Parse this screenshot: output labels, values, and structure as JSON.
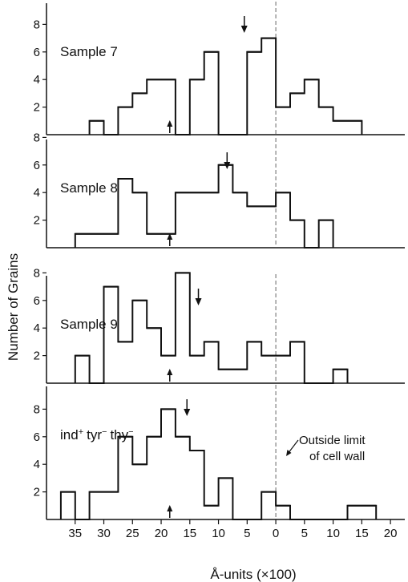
{
  "chart_data": [
    {
      "type": "histogram",
      "panel_label": "Sample 7",
      "label_sub": "",
      "bin_width": 2.5,
      "bins": [
        {
          "x": -30,
          "y": 1
        },
        {
          "x": -27.5,
          "y": 0
        },
        {
          "x": -25,
          "y": 2
        },
        {
          "x": -22.5,
          "y": 3
        },
        {
          "x": -20,
          "y": 4
        },
        {
          "x": -17.5,
          "y": 4
        },
        {
          "x": -15,
          "y": 0
        },
        {
          "x": -12.5,
          "y": 4
        },
        {
          "x": -10,
          "y": 6
        },
        {
          "x": -7.5,
          "y": 0
        },
        {
          "x": -5,
          "y": 0
        },
        {
          "x": -2.5,
          "y": 6
        },
        {
          "x": 0,
          "y": 7
        },
        {
          "x": 2.5,
          "y": 2
        },
        {
          "x": 5,
          "y": 3
        },
        {
          "x": 7.5,
          "y": 4
        },
        {
          "x": 10,
          "y": 2
        },
        {
          "x": 12.5,
          "y": 1
        },
        {
          "x": 15,
          "y": 1
        }
      ],
      "down_arrow_x": -5.5,
      "up_arrow_x": -18.5,
      "yticks": [
        2,
        4,
        6,
        8
      ],
      "ylim": [
        0,
        9
      ]
    },
    {
      "type": "histogram",
      "panel_label": "Sample 8",
      "label_sub": "",
      "bin_width": 2.5,
      "bins": [
        {
          "x": -32.5,
          "y": 1
        },
        {
          "x": -30,
          "y": 1
        },
        {
          "x": -27.5,
          "y": 1
        },
        {
          "x": -25,
          "y": 5
        },
        {
          "x": -22.5,
          "y": 4
        },
        {
          "x": -20,
          "y": 1
        },
        {
          "x": -17.5,
          "y": 1
        },
        {
          "x": -15,
          "y": 4
        },
        {
          "x": -12.5,
          "y": 4
        },
        {
          "x": -10,
          "y": 4
        },
        {
          "x": -7.5,
          "y": 6
        },
        {
          "x": -5,
          "y": 4
        },
        {
          "x": -2.5,
          "y": 3
        },
        {
          "x": 0,
          "y": 3
        },
        {
          "x": 2.5,
          "y": 4
        },
        {
          "x": 5,
          "y": 2
        },
        {
          "x": 7.5,
          "y": 0
        },
        {
          "x": 10,
          "y": 2
        }
      ],
      "down_arrow_x": -8.5,
      "up_arrow_x": -18.5,
      "yticks": [
        2,
        4,
        6,
        8
      ],
      "ylim": [
        0,
        9
      ]
    },
    {
      "type": "histogram",
      "panel_label": "Sample 9",
      "label_sub": "",
      "bin_width": 2.5,
      "bins": [
        {
          "x": -32.5,
          "y": 2
        },
        {
          "x": -30,
          "y": 0
        },
        {
          "x": -27.5,
          "y": 7
        },
        {
          "x": -25,
          "y": 3
        },
        {
          "x": -22.5,
          "y": 6
        },
        {
          "x": -20,
          "y": 4
        },
        {
          "x": -17.5,
          "y": 2
        },
        {
          "x": -15,
          "y": 8
        },
        {
          "x": -12.5,
          "y": 2
        },
        {
          "x": -10,
          "y": 3
        },
        {
          "x": -7.5,
          "y": 1
        },
        {
          "x": -5,
          "y": 1
        },
        {
          "x": -2.5,
          "y": 3
        },
        {
          "x": 0,
          "y": 2
        },
        {
          "x": 2.5,
          "y": 2
        },
        {
          "x": 5,
          "y": 3
        },
        {
          "x": 7.5,
          "y": 0
        },
        {
          "x": 10,
          "y": 0
        },
        {
          "x": 12.5,
          "y": 1
        }
      ],
      "down_arrow_x": -13.5,
      "up_arrow_x": -18.5,
      "yticks": [
        2,
        4,
        6,
        8
      ],
      "ylim": [
        0,
        9
      ]
    },
    {
      "type": "histogram",
      "panel_label": "ind",
      "label_sub": "tyr thy",
      "bin_width": 2.5,
      "bins": [
        {
          "x": -35,
          "y": 2
        },
        {
          "x": -32.5,
          "y": 0
        },
        {
          "x": -30,
          "y": 2
        },
        {
          "x": -27.5,
          "y": 2
        },
        {
          "x": -25,
          "y": 6
        },
        {
          "x": -22.5,
          "y": 4
        },
        {
          "x": -20,
          "y": 6
        },
        {
          "x": -17.5,
          "y": 8
        },
        {
          "x": -15,
          "y": 6
        },
        {
          "x": -12.5,
          "y": 5
        },
        {
          "x": -10,
          "y": 1
        },
        {
          "x": -7.5,
          "y": 3
        },
        {
          "x": -5,
          "y": 0
        },
        {
          "x": -2.5,
          "y": 0
        },
        {
          "x": 0,
          "y": 2
        },
        {
          "x": 2.5,
          "y": 1
        },
        {
          "x": 5,
          "y": 0
        },
        {
          "x": 7.5,
          "y": 0
        },
        {
          "x": 10,
          "y": 0
        },
        {
          "x": 12.5,
          "y": 0
        },
        {
          "x": 15,
          "y": 1
        },
        {
          "x": 17.5,
          "y": 1
        }
      ],
      "down_arrow_x": -15.5,
      "up_arrow_x": -18.5,
      "yticks": [
        2,
        4,
        6,
        8
      ],
      "ylim": [
        0,
        9
      ]
    }
  ],
  "xticks": [
    {
      "value": -35,
      "label": "35"
    },
    {
      "value": -30,
      "label": "30"
    },
    {
      "value": -25,
      "label": "25"
    },
    {
      "value": -20,
      "label": "20"
    },
    {
      "value": -15,
      "label": "15"
    },
    {
      "value": -10,
      "label": "10"
    },
    {
      "value": -5,
      "label": "5"
    },
    {
      "value": 0,
      "label": "0"
    },
    {
      "value": 5,
      "label": "5"
    },
    {
      "value": 10,
      "label": "10"
    },
    {
      "value": 15,
      "label": "15"
    },
    {
      "value": 20,
      "label": "20"
    }
  ],
  "xlim": [
    -40,
    22.5
  ],
  "xlabel": "Å-units (×100)",
  "ylabel": "Number of Grains",
  "annotation": {
    "line1": "Outside limit",
    "line2": "of cell wall"
  }
}
